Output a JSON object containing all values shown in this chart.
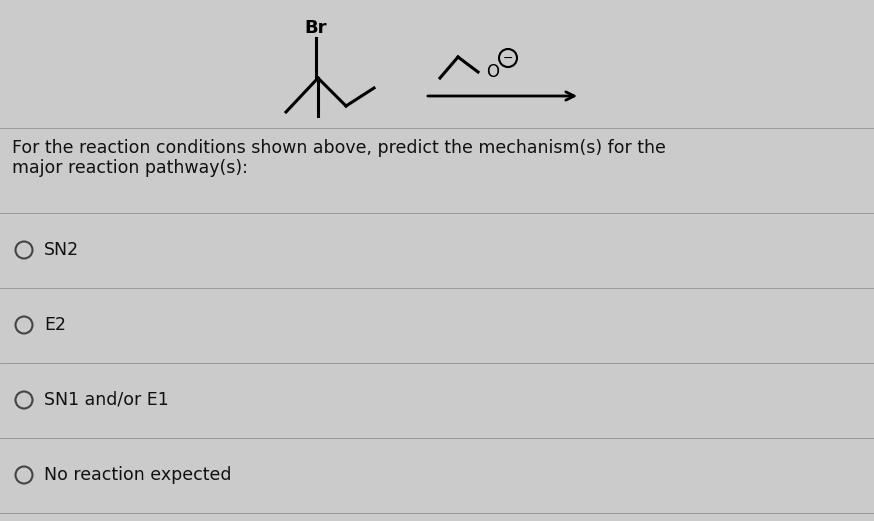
{
  "background_color": "#cbcbcb",
  "question_text_line1": "For the reaction conditions shown above, predict the mechanism(s) for the",
  "question_text_line2": "major reaction pathway(s):",
  "options": [
    "SN2",
    "E2",
    "SN1 and/or E1",
    "No reaction expected"
  ],
  "text_color": "#111111",
  "line_color": "#999999",
  "circle_color": "#444444",
  "font_size_question": 12.5,
  "font_size_options": 12.5,
  "br_label": "Br",
  "fig_width": 8.74,
  "fig_height": 5.21,
  "dpi": 100
}
